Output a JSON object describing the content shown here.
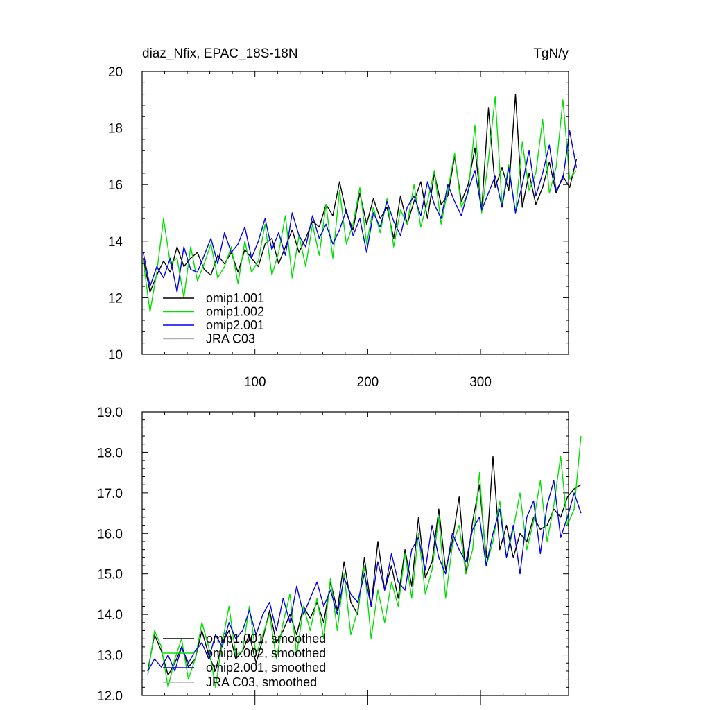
{
  "header": {
    "title": "diaz_Nfix, EPAC_18S-18N",
    "units": "TgN/y"
  },
  "colors": {
    "omip1_001": "#000000",
    "omip1_002": "#00e000",
    "omip2_001": "#0000ee",
    "jra_c03": "#b0b0b0"
  },
  "chart_data": [
    {
      "type": "line",
      "title": "diaz_Nfix, EPAC_18S-18N",
      "units": "TgN/y",
      "xlim": [
        0,
        378
      ],
      "ylim": [
        10,
        20
      ],
      "xticks": [
        100,
        200,
        300
      ],
      "xtick_labels": [
        "100",
        "200",
        "300"
      ],
      "yticks": [
        10,
        12,
        14,
        16,
        18,
        20
      ],
      "ytick_labels": [
        "10",
        "12",
        "14",
        "16",
        "18",
        "20"
      ],
      "legend_position": "lower-left",
      "series": [
        {
          "name": "omip1.001",
          "color": "#000000",
          "x_start": 1,
          "x_step": 6,
          "values": [
            13.4,
            12.2,
            12.8,
            13.3,
            12.9,
            13.8,
            13.1,
            13.4,
            13.6,
            13.0,
            12.8,
            13.5,
            13.2,
            13.6,
            12.9,
            13.7,
            13.4,
            13.1,
            13.9,
            14.1,
            13.2,
            13.8,
            14.4,
            13.6,
            14.1,
            14.7,
            14.5,
            15.3,
            14.9,
            16.1,
            15.0,
            14.4,
            15.7,
            14.6,
            15.5,
            14.8,
            15.2,
            14.1,
            15.6,
            14.6,
            15.4,
            16.1,
            14.8,
            16.4,
            15.3,
            15.6,
            17.0,
            15.4,
            16.0,
            17.3,
            15.1,
            18.7,
            15.9,
            16.6,
            15.8,
            19.2,
            15.2,
            16.4,
            15.3,
            15.9,
            16.8,
            15.7,
            16.3,
            15.9,
            16.9
          ]
        },
        {
          "name": "omip1.002",
          "color": "#00e000",
          "x_start": 1,
          "x_step": 6,
          "values": [
            13.3,
            11.5,
            12.9,
            14.8,
            13.2,
            13.4,
            12.0,
            13.8,
            12.6,
            13.2,
            13.9,
            12.7,
            13.1,
            13.8,
            12.5,
            14.0,
            12.9,
            13.3,
            14.6,
            12.8,
            13.6,
            14.9,
            12.7,
            14.2,
            13.1,
            14.6,
            13.5,
            15.3,
            13.4,
            15.8,
            13.9,
            14.6,
            15.9,
            13.9,
            15.2,
            14.3,
            15.5,
            13.8,
            15.1,
            14.6,
            16.0,
            14.5,
            15.4,
            16.5,
            14.6,
            15.8,
            17.1,
            15.2,
            15.7,
            18.1,
            15.0,
            16.9,
            19.1,
            15.3,
            16.7,
            15.0,
            17.5,
            15.8,
            16.4,
            18.3,
            15.7,
            16.6,
            19.0,
            16.2,
            16.5
          ]
        },
        {
          "name": "omip2.001",
          "color": "#0000ee",
          "x_start": 1,
          "x_step": 6,
          "values": [
            13.6,
            12.4,
            13.1,
            12.7,
            13.4,
            12.2,
            13.8,
            13.0,
            12.9,
            13.5,
            14.1,
            13.2,
            14.3,
            13.6,
            13.9,
            14.5,
            13.4,
            14.0,
            14.8,
            13.7,
            14.3,
            13.5,
            15.0,
            14.2,
            13.8,
            14.9,
            14.1,
            14.6,
            13.9,
            14.4,
            15.1,
            14.2,
            14.8,
            13.6,
            15.0,
            14.5,
            15.4,
            14.7,
            14.2,
            15.2,
            15.6,
            14.9,
            16.1,
            15.3,
            14.8,
            16.0,
            15.4,
            14.9,
            15.8,
            16.5,
            15.1,
            15.7,
            16.3,
            15.2,
            16.6,
            15.0,
            16.0,
            17.2,
            15.6,
            16.4,
            17.4,
            15.8,
            16.2,
            17.9,
            16.6
          ]
        }
      ]
    },
    {
      "type": "line",
      "xlim": [
        0,
        378
      ],
      "ylim": [
        12.0,
        19.0
      ],
      "xticks": [
        100,
        200,
        300
      ],
      "xtick_labels": [],
      "yticks": [
        12.0,
        13.0,
        14.0,
        15.0,
        16.0,
        17.0,
        18.0,
        19.0
      ],
      "ytick_labels": [
        "12.0",
        "13.0",
        "14.0",
        "15.0",
        "16.0",
        "17.0",
        "18.0",
        "19.0"
      ],
      "legend_position": "lower-left",
      "series": [
        {
          "name": "omip1.001, smoothed",
          "color": "#000000",
          "x_start": 5,
          "x_step": 6,
          "values": [
            12.6,
            13.5,
            13.1,
            12.5,
            12.8,
            13.2,
            12.7,
            12.9,
            13.6,
            13.0,
            12.6,
            13.3,
            13.6,
            12.9,
            13.1,
            13.5,
            12.8,
            13.4,
            14.1,
            13.3,
            13.6,
            14.0,
            13.5,
            14.2,
            13.9,
            14.3,
            13.8,
            14.8,
            14.1,
            15.3,
            14.3,
            14.0,
            15.4,
            14.2,
            15.8,
            14.6,
            15.2,
            14.4,
            15.6,
            14.7,
            16.4,
            14.9,
            15.3,
            16.6,
            15.1,
            15.8,
            16.9,
            15.0,
            16.3,
            17.2,
            15.4,
            17.9,
            15.6,
            16.2,
            15.4,
            16.0,
            15.8,
            16.4,
            16.1,
            16.2,
            16.6,
            16.4,
            16.9,
            17.1,
            17.2
          ]
        },
        {
          "name": "omip1.002, smoothed",
          "color": "#00e000",
          "x_start": 5,
          "x_step": 6,
          "values": [
            12.5,
            13.6,
            13.2,
            12.2,
            12.9,
            13.4,
            12.4,
            12.9,
            13.8,
            13.2,
            12.2,
            13.3,
            14.2,
            13.0,
            13.1,
            14.2,
            13.0,
            13.5,
            14.0,
            12.9,
            13.8,
            14.5,
            13.0,
            14.2,
            13.6,
            14.4,
            13.4,
            14.9,
            13.6,
            15.0,
            13.5,
            14.1,
            15.2,
            13.4,
            14.6,
            13.8,
            14.8,
            14.2,
            15.5,
            14.4,
            16.0,
            14.5,
            15.1,
            16.4,
            14.4,
            15.7,
            16.2,
            15.0,
            15.6,
            17.5,
            15.2,
            15.8,
            16.8,
            15.4,
            16.1,
            17.0,
            15.6,
            16.3,
            17.3,
            15.8,
            16.7,
            17.9,
            16.2,
            16.6,
            18.4
          ]
        },
        {
          "name": "omip2.001, smoothed",
          "color": "#0000ee",
          "x_start": 5,
          "x_step": 6,
          "values": [
            12.6,
            12.9,
            12.7,
            13.0,
            12.6,
            13.2,
            12.8,
            13.1,
            13.3,
            12.9,
            13.5,
            13.2,
            13.8,
            13.4,
            13.6,
            14.1,
            13.5,
            14.0,
            14.3,
            13.6,
            14.4,
            13.8,
            14.7,
            14.0,
            14.4,
            14.8,
            14.2,
            14.6,
            14.0,
            14.9,
            14.5,
            14.3,
            15.0,
            14.2,
            15.3,
            14.6,
            15.5,
            14.8,
            14.6,
            15.6,
            15.9,
            15.1,
            16.2,
            15.4,
            15.0,
            16.0,
            15.6,
            15.3,
            16.1,
            16.4,
            15.2,
            16.0,
            16.6,
            15.4,
            16.2,
            15.0,
            16.4,
            16.8,
            15.5,
            16.7,
            17.3,
            15.9,
            16.4,
            17.0,
            16.5
          ]
        }
      ]
    }
  ],
  "legend_top": {
    "items": [
      {
        "label": "omip1.001",
        "color": "#000000"
      },
      {
        "label": "omip1.002",
        "color": "#00e000"
      },
      {
        "label": "omip2.001",
        "color": "#0000ee"
      },
      {
        "label": "JRA C03",
        "color": "#b0b0b0"
      }
    ]
  },
  "legend_bottom": {
    "items": [
      {
        "label": "omip1.001, smoothed",
        "color": "#000000"
      },
      {
        "label": "omip1.002, smoothed",
        "color": "#00e000"
      },
      {
        "label": "omip2.001, smoothed",
        "color": "#0000ee"
      },
      {
        "label": "JRA C03, smoothed",
        "color": "#b0b0b0"
      }
    ]
  }
}
